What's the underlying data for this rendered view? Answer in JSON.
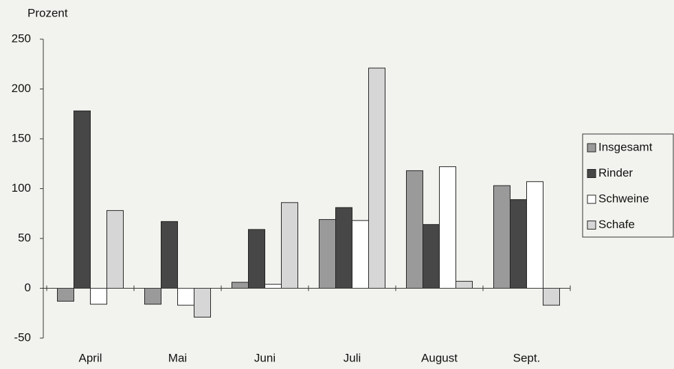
{
  "chart_data": {
    "type": "bar",
    "y_label": "Prozent",
    "categories": [
      "April",
      "Mai",
      "Juni",
      "Juli",
      "August",
      "Sept."
    ],
    "series": [
      {
        "name": "Insgesamt",
        "color": "#9a9a9a",
        "values": [
          -13,
          -16,
          6,
          69,
          118,
          103
        ]
      },
      {
        "name": "Rinder",
        "color": "#474747",
        "values": [
          178,
          67,
          59,
          81,
          64,
          89
        ]
      },
      {
        "name": "Schweine",
        "color": "#ffffff",
        "values": [
          -16,
          -17,
          4,
          68,
          122,
          107
        ]
      },
      {
        "name": "Schafe",
        "color": "#d6d6d6",
        "values": [
          78,
          -29,
          86,
          221,
          7,
          -17
        ]
      }
    ],
    "ylim": [
      -50,
      250
    ],
    "yticks": [
      -50,
      0,
      50,
      100,
      150,
      200,
      250
    ],
    "grid": false,
    "legend": "right"
  }
}
